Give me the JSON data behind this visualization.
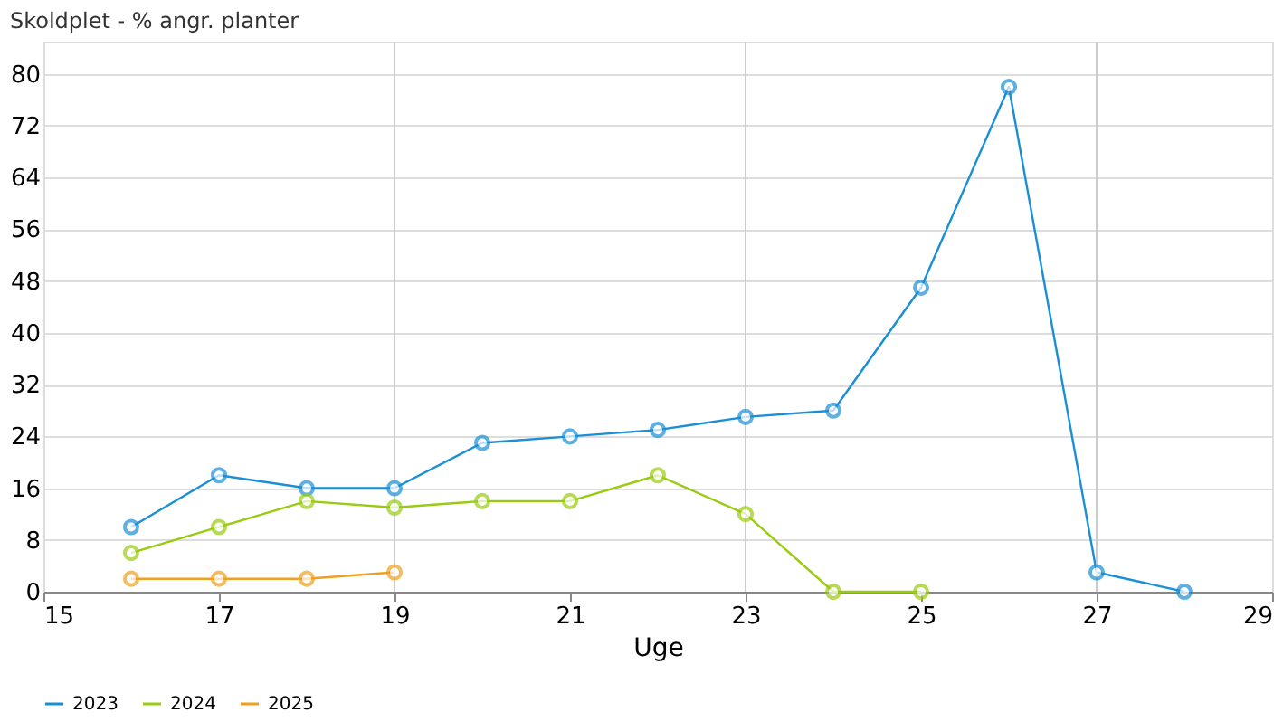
{
  "chart_data": {
    "type": "line",
    "title": "Skoldplet - % angr. planter",
    "xlabel": "Uge",
    "xlim": [
      15,
      29
    ],
    "xticks": [
      15,
      17,
      19,
      21,
      23,
      25,
      27,
      29
    ],
    "ylim": [
      0,
      85
    ],
    "yticks": [
      0,
      8,
      16,
      24,
      32,
      40,
      48,
      56,
      64,
      72,
      80
    ],
    "grid": "y",
    "legend": "bottom",
    "marker": "circle",
    "line_style": "solid",
    "ref_lines": [
      {
        "axis": "x",
        "value": 19,
        "color": "#cccccc"
      },
      {
        "axis": "x",
        "value": 23,
        "color": "#cccccc"
      },
      {
        "axis": "x",
        "value": 27,
        "color": "#cccccc"
      }
    ],
    "series": [
      {
        "name": "2023",
        "color": "#1a8fd6",
        "x": [
          16,
          17,
          18,
          19,
          20,
          21,
          22,
          23,
          24,
          25,
          26,
          27,
          28
        ],
        "values": [
          10,
          18,
          16,
          16,
          23,
          24,
          25,
          27,
          28,
          47,
          78,
          3,
          0
        ]
      },
      {
        "name": "2024",
        "color": "#99cc11",
        "x": [
          16,
          17,
          18,
          19,
          20,
          21,
          22,
          23,
          24,
          25
        ],
        "values": [
          6,
          10,
          14,
          13,
          14,
          14,
          18,
          12,
          0,
          0
        ]
      },
      {
        "name": "2025",
        "color": "#f0a020",
        "x": [
          16,
          17,
          18,
          19
        ],
        "values": [
          2,
          2,
          2,
          3
        ]
      }
    ]
  }
}
